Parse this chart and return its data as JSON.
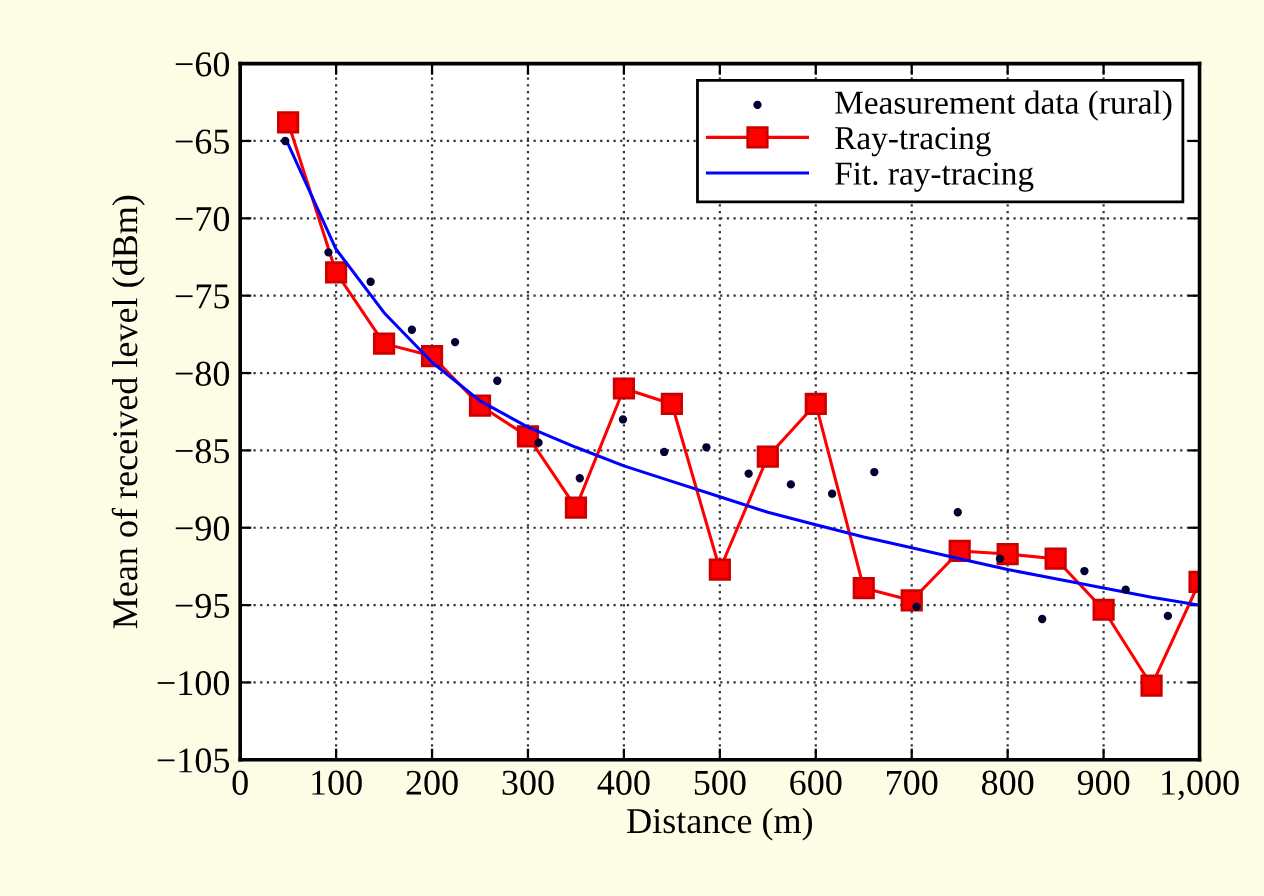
{
  "chart_data": {
    "type": "line",
    "xlabel": "Distance (m)",
    "ylabel": "Mean of received level (dBm)",
    "xlim": [
      0,
      1000
    ],
    "ylim": [
      -105,
      -60
    ],
    "xticks": [
      0,
      100,
      200,
      300,
      400,
      500,
      600,
      700,
      800,
      900,
      {
        "value": 1000,
        "label": "1,000"
      }
    ],
    "yticks": [
      {
        "value": -105,
        "label": "−105"
      },
      {
        "value": -100,
        "label": "−100"
      },
      {
        "value": -95,
        "label": "−95"
      },
      {
        "value": -90,
        "label": "−90"
      },
      {
        "value": -85,
        "label": "−85"
      },
      {
        "value": -80,
        "label": "−80"
      },
      {
        "value": -75,
        "label": "−75"
      },
      {
        "value": -70,
        "label": "−70"
      },
      {
        "value": -65,
        "label": "−65"
      },
      {
        "value": -60,
        "label": "−60"
      }
    ],
    "grid": true,
    "legend": "top right",
    "series": [
      {
        "name": "Measurement data (rural)",
        "type": "scatter",
        "color": "#000033",
        "marker": "circle",
        "x": [
          47,
          92,
          136,
          179,
          224,
          268,
          311,
          354,
          399,
          442,
          486,
          530,
          574,
          617,
          661,
          705,
          748,
          792,
          836,
          880,
          923,
          967
        ],
        "values": [
          -65.0,
          -72.2,
          -74.1,
          -77.2,
          -78.0,
          -80.5,
          -84.5,
          -86.8,
          -83.0,
          -85.1,
          -84.8,
          -86.5,
          -87.2,
          -87.8,
          -86.4,
          -95.1,
          -89.0,
          -92.0,
          -95.9,
          -92.8,
          -94.0,
          -95.7
        ]
      },
      {
        "name": "Ray-tracing",
        "color": "#ff0000",
        "marker": "square",
        "line_style": "solid",
        "x": [
          50,
          100,
          150,
          200,
          250,
          300,
          350,
          400,
          450,
          500,
          550,
          600,
          650,
          700,
          750,
          800,
          850,
          900,
          950,
          1000
        ],
        "values": [
          -63.8,
          -73.5,
          -78.1,
          -78.9,
          -82.1,
          -84.1,
          -88.7,
          -81.0,
          -82.0,
          -92.7,
          -85.4,
          -82.0,
          -93.9,
          -94.7,
          -91.5,
          -91.7,
          -92.0,
          -95.3,
          -100.2,
          -93.5
        ]
      },
      {
        "name": "Fit. ray-tracing",
        "color": "#0000ff",
        "line_style": "solid",
        "x": [
          50,
          100,
          150,
          200,
          250,
          300,
          350,
          400,
          450,
          500,
          550,
          600,
          650,
          700,
          750,
          800,
          850,
          900,
          950,
          1000
        ],
        "values": [
          -65.2,
          -72.0,
          -76.1,
          -79.3,
          -81.8,
          -83.5,
          -84.8,
          -86.0,
          -87.0,
          -88.0,
          -89.0,
          -89.8,
          -90.6,
          -91.3,
          -92.0,
          -92.7,
          -93.3,
          -93.9,
          -94.5,
          -95.0
        ]
      }
    ]
  }
}
